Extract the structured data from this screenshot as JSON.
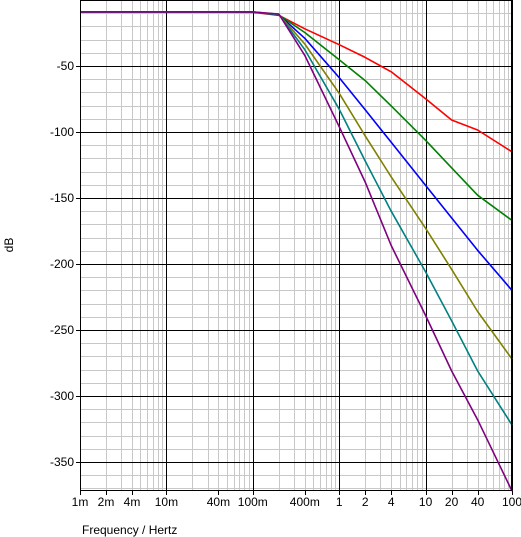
{
  "chart_data": {
    "type": "line",
    "title": "",
    "xlabel": "Frequency / Hertz",
    "ylabel": "dB",
    "x_scale": "log",
    "xlim": [
      0.001,
      100
    ],
    "ylim": [
      -372,
      0
    ],
    "grid": true,
    "legend": "none",
    "x_tick_values": [
      0.001,
      0.002,
      0.004,
      0.01,
      0.04,
      0.1,
      0.4,
      1,
      2,
      4,
      10,
      20,
      40,
      100
    ],
    "x_tick_labels": [
      "1m",
      "2m",
      "4m",
      "10m",
      "40m",
      "100m",
      "400m",
      "1",
      "2",
      "4",
      "10",
      "20",
      "40",
      "100"
    ],
    "y_tick_values": [
      -50,
      -100,
      -150,
      -200,
      -250,
      -300,
      -350
    ],
    "y_tick_labels": [
      "-50",
      "-100",
      "-150",
      "-200",
      "-250",
      "-300",
      "-350"
    ],
    "cutoff_hz": 0.25,
    "passband_db": -9,
    "series": [
      {
        "order": 3,
        "color": "#ff0000",
        "x": [
          0.001,
          0.01,
          0.1,
          0.2,
          0.4,
          1,
          2,
          4,
          10,
          20,
          40,
          100
        ],
        "y": [
          -9,
          -9,
          -9.3,
          -11.6,
          -21.8,
          -33.9,
          -43.5,
          -54.4,
          -74.8,
          -90.9,
          -98.5,
          -115
        ]
      },
      {
        "order": 4,
        "color": "#008000",
        "x": [
          0.001,
          0.01,
          0.1,
          0.2,
          0.4,
          1,
          2,
          4,
          10,
          20,
          40,
          100
        ],
        "y": [
          -9,
          -9,
          -9.2,
          -11.4,
          -24.6,
          -45.2,
          -61.1,
          -80.2,
          -106.3,
          -127.1,
          -147.9,
          -167
        ]
      },
      {
        "order": 5,
        "color": "#0000ff",
        "x": [
          0.001,
          0.01,
          0.1,
          0.2,
          0.4,
          1,
          2,
          4,
          10,
          20,
          40,
          100
        ],
        "y": [
          -9,
          -9,
          -9.1,
          -11.2,
          -29,
          -58.8,
          -83.2,
          -107.8,
          -140.5,
          -165.1,
          -189.6,
          -220
        ]
      },
      {
        "order": 6,
        "color": "#808000",
        "x": [
          0.001,
          0.01,
          0.1,
          0.2,
          0.4,
          1,
          2,
          4,
          10,
          20,
          40,
          100
        ],
        "y": [
          -9,
          -9,
          -9,
          -11,
          -33.3,
          -70.7,
          -103,
          -134,
          -173,
          -204,
          -236,
          -272
        ]
      },
      {
        "order": 7,
        "color": "#008080",
        "x": [
          0.001,
          0.01,
          0.1,
          0.2,
          0.4,
          1,
          2,
          4,
          10,
          20,
          40,
          100
        ],
        "y": [
          -9,
          -9,
          -9,
          -10.8,
          -37.6,
          -82.7,
          -122,
          -160,
          -206,
          -243,
          -281,
          -322
        ]
      },
      {
        "order": 8,
        "color": "#800080",
        "x": [
          0.001,
          0.01,
          0.1,
          0.2,
          0.4,
          1,
          2,
          4,
          10,
          20,
          40,
          100
        ],
        "y": [
          -9,
          -9,
          -9,
          -10.6,
          -42,
          -96,
          -138,
          -186,
          -239,
          -281,
          -318,
          -372
        ]
      }
    ]
  }
}
